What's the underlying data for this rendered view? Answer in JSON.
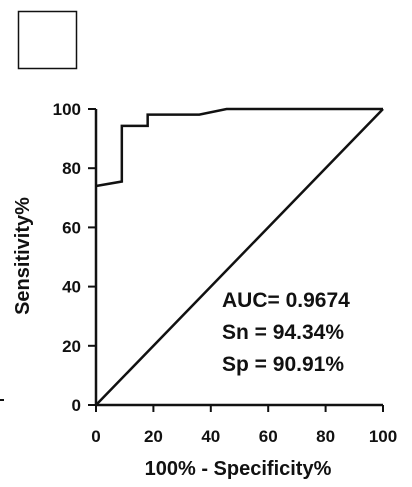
{
  "chart_data": {
    "type": "line",
    "xlabel": "100% - Specificity%",
    "ylabel": "Sensitivity%",
    "xlim": [
      0,
      100
    ],
    "ylim": [
      0,
      100
    ],
    "x_ticks": [
      "0",
      "20",
      "40",
      "60",
      "80",
      "100"
    ],
    "y_ticks": [
      "0",
      "20",
      "40",
      "60",
      "80",
      "100"
    ],
    "series": [
      {
        "values": [
          {
            "x": 0,
            "y": 74
          },
          {
            "x": 9,
            "y": 75.5
          },
          {
            "x": 9,
            "y": 94.3
          },
          {
            "x": 18,
            "y": 94.3
          },
          {
            "x": 18,
            "y": 98.1
          },
          {
            "x": 36,
            "y": 98.1
          },
          {
            "x": 45.5,
            "y": 100
          },
          {
            "x": 100,
            "y": 100
          }
        ],
        "color": "#111111"
      },
      {
        "values": [
          {
            "x": 0,
            "y": 0
          },
          {
            "x": 100,
            "y": 100
          }
        ],
        "color": "#111111"
      }
    ],
    "annotations": [
      "AUC= 0.9674",
      "Sn = 94.34%",
      "Sp = 90.91%"
    ],
    "grid": false,
    "legend": "top-left",
    "legend_swatch_color": "#ffffff"
  }
}
